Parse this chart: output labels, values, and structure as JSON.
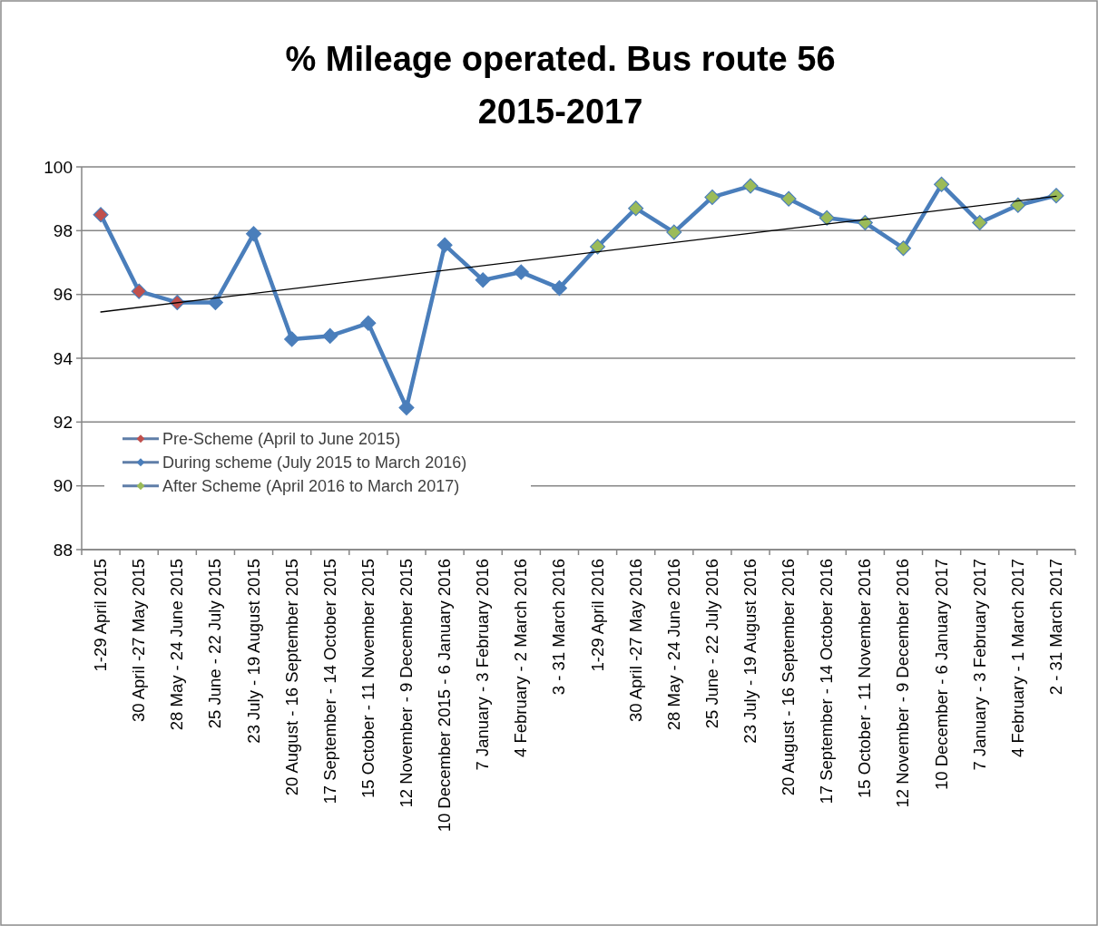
{
  "chart_data": {
    "type": "line",
    "title": "% Mileage operated. Bus route 56\n2015-2017",
    "categories": [
      "1-29 April 2015",
      "30 April -27 May 2015",
      "28 May - 24 June 2015",
      "25 June - 22 July 2015",
      "23 July - 19 August 2015",
      "20 August - 16 September 2015",
      "17 September - 14 October 2015",
      "15 October - 11 November 2015",
      "12 November - 9 December 2015",
      "10 December 2015 - 6 January 2016",
      "7 January - 3 February 2016",
      "4 February - 2 March 2016",
      "3 - 31 March 2016",
      "1-29 April 2016",
      "30 April -27 May 2016",
      "28 May - 24 June 2016",
      "25 June - 22 July 2016",
      "23 July - 19 August 2016",
      "20 August - 16 September 2016",
      "17 September - 14 October 2016",
      "15 October - 11 November 2016",
      "12 November - 9 December 2016",
      "10 December - 6 January 2017",
      "7 January - 3 February 2017",
      "4 February - 1 March 2017",
      "2 - 31 March 2017"
    ],
    "series": [
      {
        "color": "#4a7ebb",
        "marker": "none",
        "values": [
          98.5,
          96.1,
          95.75,
          95.75,
          97.9,
          94.6,
          94.7,
          95.1,
          92.45,
          97.55,
          96.45,
          96.7,
          96.2,
          97.5,
          98.7,
          97.95,
          99.05,
          99.4,
          99.0,
          98.4,
          98.25,
          97.45,
          99.45,
          98.25,
          98.8,
          99.1
        ]
      },
      {
        "type": "scatter",
        "name": "Pre-Scheme (April to June 2015)",
        "color": "#c0504d",
        "values": [
          98.5,
          96.1,
          95.75,
          null,
          null,
          null,
          null,
          null,
          null,
          null,
          null,
          null,
          null,
          null,
          null,
          null,
          null,
          null,
          null,
          null,
          null,
          null,
          null,
          null,
          null,
          null
        ]
      },
      {
        "type": "scatter",
        "name": "During scheme (July 2015 to March 2016)",
        "color": "#4a7ebb",
        "values": [
          null,
          null,
          null,
          95.75,
          97.9,
          94.6,
          94.7,
          95.1,
          92.45,
          97.55,
          96.45,
          96.7,
          96.2,
          null,
          null,
          null,
          null,
          null,
          null,
          null,
          null,
          null,
          null,
          null,
          null,
          null
        ]
      },
      {
        "type": "scatter",
        "name": "After Scheme (April 2016 to March 2017)",
        "color": "#9bbb59",
        "values": [
          null,
          null,
          null,
          null,
          null,
          null,
          null,
          null,
          null,
          null,
          null,
          null,
          null,
          97.5,
          98.7,
          97.95,
          99.05,
          99.4,
          99.0,
          98.4,
          98.25,
          97.45,
          99.45,
          98.25,
          98.8,
          99.1
        ]
      },
      {
        "type": "line",
        "color": "#000000",
        "marker": "none",
        "x": [
          "1-29 April 2015",
          "2 - 31 March 2017"
        ],
        "values": [
          95.45,
          99.08
        ]
      }
    ],
    "ylim": [
      88,
      100
    ],
    "yticks": [
      88,
      90,
      92,
      94,
      96,
      98,
      100
    ],
    "grid": "y",
    "legend": "bottom left",
    "marker": "diamond"
  }
}
